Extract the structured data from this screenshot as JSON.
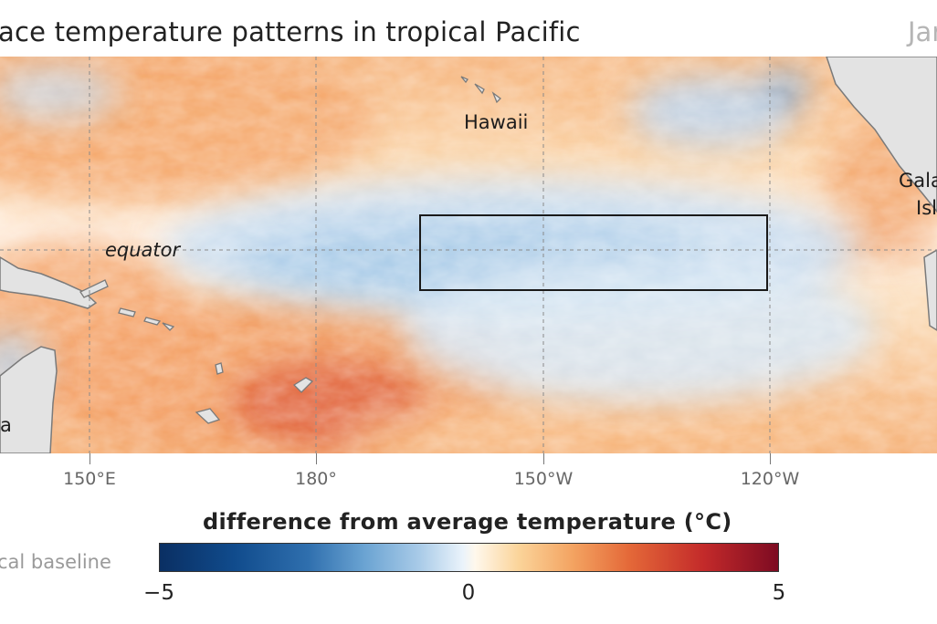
{
  "header": {
    "title": "ace temperature patterns in tropical Pacific",
    "date_partial": "Jan"
  },
  "map": {
    "labels": {
      "hawaii": "Hawaii",
      "equator": "equator",
      "galapagos_line1": "Gala",
      "galapagos_line2": "Isl",
      "left_land_fragment": "a"
    },
    "longitudes": [
      "150°E",
      "180°",
      "150°W",
      "120°W"
    ],
    "highlight_box": "Niño 3.4 region outline",
    "colors": {
      "warm_anomaly": "#f4a86a",
      "strong_warm": "#e0603a",
      "cool_anomaly": "#a9cbe8",
      "land": "#e3e3e3",
      "coast": "#7a7a7a"
    }
  },
  "legend": {
    "title": "difference from average temperature (°C)",
    "baseline_fragment": "cal baseline",
    "ticks": [
      "−5",
      "0",
      "5"
    ],
    "range": [
      -5,
      5
    ]
  }
}
